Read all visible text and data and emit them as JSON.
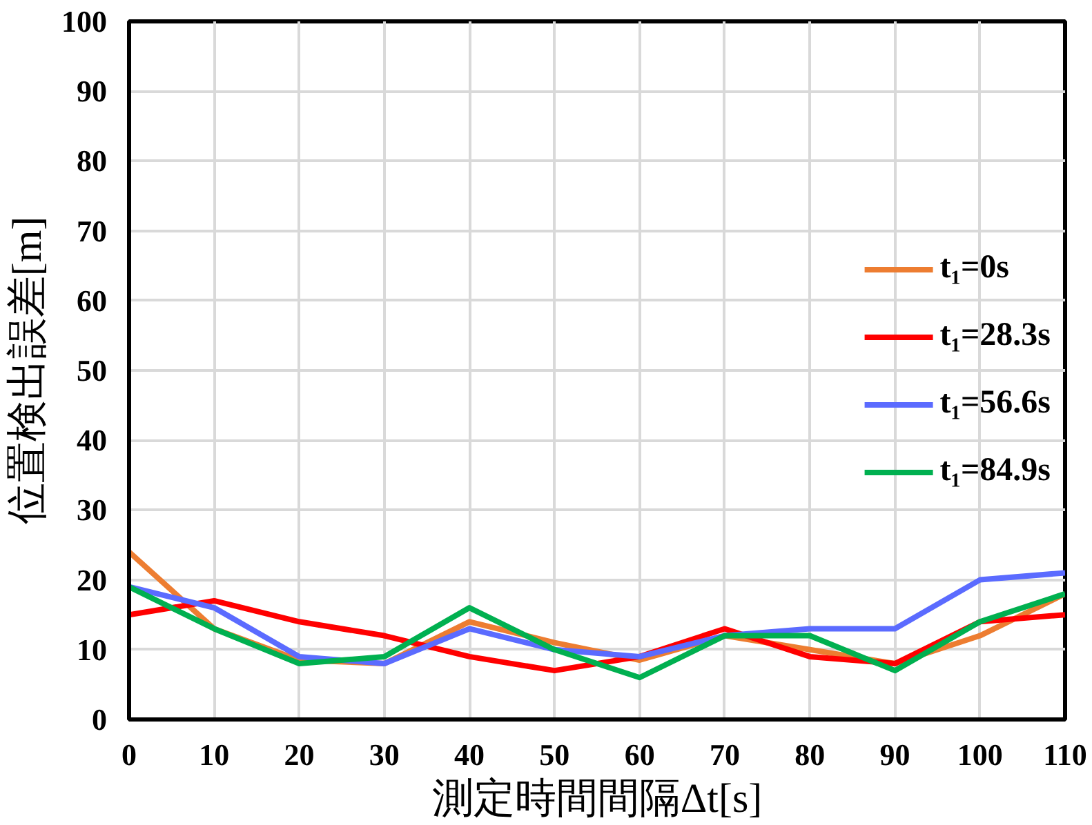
{
  "chart_data": {
    "type": "line",
    "xlabel": "測定時間間隔Δt[s]",
    "ylabel": "位置検出誤差[m]",
    "x": [
      0,
      10,
      20,
      30,
      40,
      50,
      60,
      70,
      80,
      90,
      100,
      110
    ],
    "xlim": [
      0,
      110
    ],
    "xticks": [
      0,
      10,
      20,
      30,
      40,
      50,
      60,
      70,
      80,
      90,
      100,
      110
    ],
    "ylim": [
      0,
      100
    ],
    "yticks": [
      0,
      10,
      20,
      30,
      40,
      50,
      60,
      70,
      80,
      90,
      100
    ],
    "grid": true,
    "legend": "right",
    "marker": "none",
    "line_style": "solid",
    "series": [
      {
        "name": "t₁=0s",
        "color": "#ed7d31",
        "values": [
          24,
          13,
          8.5,
          8,
          14,
          11,
          8.5,
          12,
          10,
          8,
          12,
          18
        ]
      },
      {
        "name": "t₁=28.3s",
        "color": "#ff0000",
        "values": [
          15,
          17,
          14,
          12,
          9,
          7,
          9,
          13,
          9,
          8,
          14,
          15
        ]
      },
      {
        "name": "t₁=56.6s",
        "color": "#5b6bff",
        "values": [
          19,
          16,
          9,
          8,
          13,
          10,
          9,
          12,
          13,
          13,
          20,
          21
        ]
      },
      {
        "name": "t₁=84.9s",
        "color": "#00b050",
        "values": [
          19,
          13,
          8,
          9,
          16,
          10,
          6,
          12,
          12,
          7,
          14,
          18
        ]
      }
    ]
  }
}
